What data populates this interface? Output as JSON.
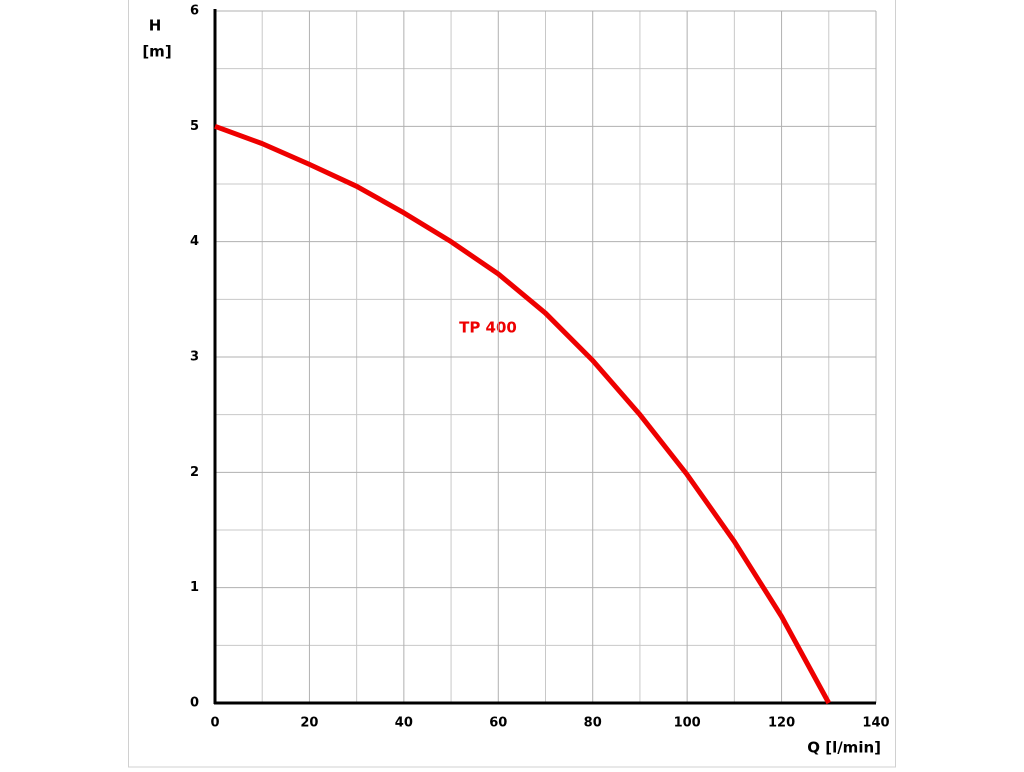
{
  "chart_data": {
    "type": "line",
    "xlabel": "Q [l/min]",
    "ylabel": [
      "H",
      "[m]"
    ],
    "annotation": "TP 400",
    "x": [
      0,
      10,
      20,
      30,
      40,
      50,
      60,
      70,
      80,
      90,
      100,
      110,
      120,
      130
    ],
    "series": [
      {
        "name": "TP 400",
        "color": "#ee0000",
        "values": [
          5.0,
          4.85,
          4.67,
          4.48,
          4.25,
          4.0,
          3.72,
          3.38,
          2.97,
          2.5,
          1.98,
          1.4,
          0.75,
          0.0
        ]
      }
    ],
    "xlim": [
      0,
      140
    ],
    "ylim": [
      0,
      6
    ],
    "xticks": [
      0,
      20,
      40,
      60,
      80,
      100,
      120,
      140
    ],
    "yticks": [
      0,
      1,
      2,
      3,
      4,
      5,
      6
    ],
    "x_minor_ticks": [
      10,
      30,
      50,
      70,
      90,
      110,
      130
    ],
    "y_minor_ticks": [
      0.5,
      1.5,
      2.5,
      3.5,
      4.5,
      5.5
    ],
    "grid": true
  }
}
